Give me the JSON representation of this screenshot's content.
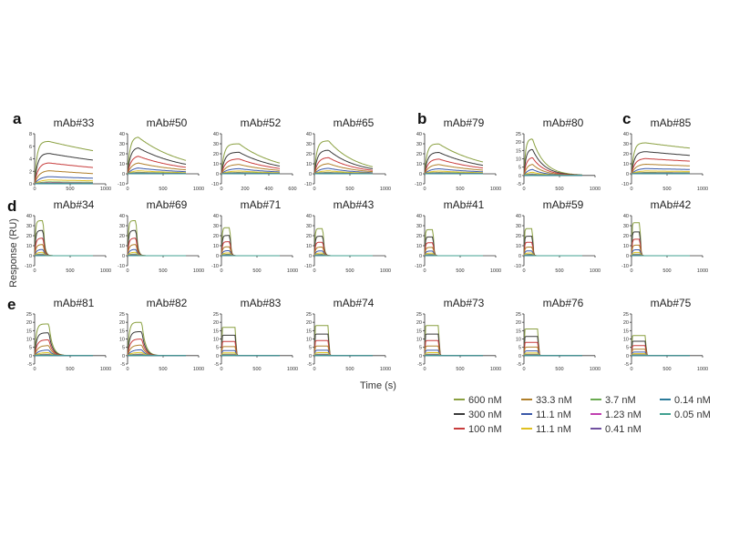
{
  "figure": {
    "ylabel": "Response (RU)",
    "xlabel": "Time (s)"
  },
  "legend": [
    {
      "label": "600 nM",
      "color": "#8aa040"
    },
    {
      "label": "300 nM",
      "color": "#3a3a3a"
    },
    {
      "label": "100 nM",
      "color": "#c83c3c"
    },
    {
      "label": "33.3 nM",
      "color": "#b07f2a"
    },
    {
      "label": "11.1 nM",
      "color": "#3a58a8"
    },
    {
      "label": "11.1 nM",
      "color": "#e0c020"
    },
    {
      "label": "3.7 nM",
      "color": "#6aaa50"
    },
    {
      "label": "1.23 nM",
      "color": "#c040b0"
    },
    {
      "label": "0.41 nM",
      "color": "#7050a0"
    },
    {
      "label": "0.14 nM",
      "color": "#2a7a9a"
    },
    {
      "label": "0.05 nM",
      "color": "#40a090"
    }
  ],
  "chart_data": [
    {
      "type": "line",
      "panel": "a",
      "title": "mAb#33",
      "yticks": [
        0,
        2,
        4,
        6,
        8
      ],
      "ylim": [
        0,
        8
      ],
      "xticks": [
        "0",
        "500",
        "1000"
      ],
      "xlim": [
        0,
        1000
      ],
      "assoc_end": 200,
      "peak": 6.8,
      "kd": 0.0004,
      "ka": 0.02
    },
    {
      "type": "line",
      "title": "mAb#50",
      "yticks": [
        -10,
        0,
        10,
        20,
        30,
        40
      ],
      "ylim": [
        -10,
        40
      ],
      "xticks": [
        "0",
        "500",
        "1000"
      ],
      "xlim": [
        0,
        1000
      ],
      "assoc_end": 150,
      "peak": 37,
      "kd": 0.0015,
      "ka": 0.02
    },
    {
      "type": "line",
      "title": "mAb#52",
      "yticks": [
        -10,
        0,
        10,
        20,
        30,
        40
      ],
      "ylim": [
        -10,
        40
      ],
      "xticks": [
        "0",
        "200",
        "400",
        "600"
      ],
      "xlim": [
        0,
        600
      ],
      "assoc_end": 150,
      "peak": 30,
      "kd": 0.003,
      "ka": 0.03
    },
    {
      "type": "line",
      "title": "mAb#65",
      "yticks": [
        -10,
        0,
        10,
        20,
        30,
        40
      ],
      "ylim": [
        -10,
        40
      ],
      "xticks": [
        "0",
        "500",
        "1000"
      ],
      "xlim": [
        0,
        1000
      ],
      "assoc_end": 200,
      "peak": 33,
      "kd": 0.0025,
      "ka": 0.02
    },
    {
      "type": "line",
      "panel": "b",
      "title": "mAb#79",
      "yticks": [
        -10,
        0,
        10,
        20,
        30,
        40
      ],
      "ylim": [
        -10,
        40
      ],
      "xticks": [
        "0",
        "500",
        "1000"
      ],
      "xlim": [
        0,
        1000
      ],
      "assoc_end": 200,
      "peak": 30,
      "kd": 0.0015,
      "ka": 0.02
    },
    {
      "type": "line",
      "title": "mAb#80",
      "yticks": [
        -5,
        0,
        5,
        10,
        15,
        20,
        25
      ],
      "ylim": [
        -5,
        25
      ],
      "xticks": [
        "0",
        "500",
        "1000"
      ],
      "xlim": [
        0,
        1000
      ],
      "assoc_end": 120,
      "peak": 22,
      "kd": 0.006,
      "ka": 0.03
    },
    {
      "type": "line",
      "panel": "c",
      "title": "mAb#85",
      "yticks": [
        -10,
        0,
        10,
        20,
        30,
        40
      ],
      "ylim": [
        -10,
        40
      ],
      "xticks": [
        "0",
        "500",
        "1000"
      ],
      "xlim": [
        0,
        1000
      ],
      "assoc_end": 200,
      "peak": 31,
      "kd": 0.0003,
      "ka": 0.02
    },
    {
      "type": "line",
      "panel": "d",
      "title": "mAb#34",
      "yticks": [
        -10,
        0,
        10,
        20,
        30,
        40
      ],
      "ylim": [
        -10,
        40
      ],
      "xticks": [
        "0",
        "500",
        "1000"
      ],
      "xlim": [
        0,
        1000
      ],
      "assoc_end": 120,
      "peak": 35,
      "kd": 0.05,
      "ka": 0.06
    },
    {
      "type": "line",
      "title": "mAb#69",
      "yticks": [
        -10,
        0,
        10,
        20,
        30,
        40
      ],
      "ylim": [
        -10,
        40
      ],
      "xticks": [
        "0",
        "500",
        "1000"
      ],
      "xlim": [
        0,
        1000
      ],
      "assoc_end": 120,
      "peak": 35,
      "kd": 0.05,
      "ka": 0.06
    },
    {
      "type": "line",
      "title": "mAb#71",
      "yticks": [
        -10,
        0,
        10,
        20,
        30,
        40
      ],
      "ylim": [
        -10,
        40
      ],
      "xticks": [
        "0",
        "500",
        "1000"
      ],
      "xlim": [
        0,
        1000
      ],
      "assoc_end": 120,
      "peak": 28,
      "kd": 0.08,
      "ka": 0.08
    },
    {
      "type": "line",
      "title": "mAb#43",
      "yticks": [
        -10,
        0,
        10,
        20,
        30,
        40
      ],
      "ylim": [
        -10,
        40
      ],
      "xticks": [
        "0",
        "500",
        "1000"
      ],
      "xlim": [
        0,
        1000
      ],
      "assoc_end": 120,
      "peak": 27,
      "kd": 0.06,
      "ka": 0.08
    },
    {
      "type": "line",
      "title": "mAb#41",
      "yticks": [
        -10,
        0,
        10,
        20,
        30,
        40
      ],
      "ylim": [
        -10,
        40
      ],
      "xticks": [
        "0",
        "500",
        "1000"
      ],
      "xlim": [
        0,
        1000
      ],
      "assoc_end": 120,
      "peak": 26,
      "kd": 0.1,
      "ka": 0.1
    },
    {
      "type": "line",
      "title": "mAb#59",
      "yticks": [
        -10,
        0,
        10,
        20,
        30,
        40
      ],
      "ylim": [
        -10,
        40
      ],
      "xticks": [
        "0",
        "500",
        "1000"
      ],
      "xlim": [
        0,
        1000
      ],
      "assoc_end": 120,
      "peak": 27,
      "kd": 0.12,
      "ka": 0.12
    },
    {
      "type": "line",
      "title": "mAb#42",
      "yticks": [
        -10,
        0,
        10,
        20,
        30,
        40
      ],
      "ylim": [
        -10,
        40
      ],
      "xticks": [
        "0",
        "500",
        "1000"
      ],
      "xlim": [
        0,
        1000
      ],
      "assoc_end": 120,
      "peak": 33,
      "kd": 0.12,
      "ka": 0.12
    },
    {
      "type": "line",
      "panel": "e",
      "title": "mAb#81",
      "yticks": [
        -5,
        0,
        5,
        10,
        15,
        20,
        25
      ],
      "ylim": [
        -5,
        25
      ],
      "xticks": [
        "0",
        "500",
        "1000"
      ],
      "xlim": [
        0,
        1000
      ],
      "assoc_end": 200,
      "peak": 19,
      "kd": 0.02,
      "ka": 0.03
    },
    {
      "type": "line",
      "title": "mAb#82",
      "yticks": [
        -5,
        0,
        5,
        10,
        15,
        20,
        25
      ],
      "ylim": [
        -5,
        25
      ],
      "xticks": [
        "0",
        "500",
        "1000"
      ],
      "xlim": [
        0,
        1000
      ],
      "assoc_end": 200,
      "peak": 20,
      "kd": 0.02,
      "ka": 0.03
    },
    {
      "type": "line",
      "title": "mAb#83",
      "yticks": [
        -5,
        0,
        5,
        10,
        15,
        20,
        25
      ],
      "ylim": [
        -5,
        25
      ],
      "xticks": [
        "0",
        "500",
        "1000"
      ],
      "xlim": [
        0,
        1000
      ],
      "assoc_end": 200,
      "peak": 17,
      "kd": 0.15,
      "ka": 0.2
    },
    {
      "type": "line",
      "title": "mAb#74",
      "yticks": [
        -5,
        0,
        5,
        10,
        15,
        20,
        25
      ],
      "ylim": [
        -5,
        25
      ],
      "xticks": [
        "0",
        "500",
        "1000"
      ],
      "xlim": [
        0,
        1000
      ],
      "assoc_end": 200,
      "peak": 18,
      "kd": 0.15,
      "ka": 0.2
    },
    {
      "type": "line",
      "title": "mAb#73",
      "yticks": [
        -5,
        0,
        5,
        10,
        15,
        20,
        25
      ],
      "ylim": [
        -5,
        25
      ],
      "xticks": [
        "0",
        "500",
        "1000"
      ],
      "xlim": [
        0,
        1000
      ],
      "assoc_end": 200,
      "peak": 18,
      "kd": 0.15,
      "ka": 0.2
    },
    {
      "type": "line",
      "title": "mAb#76",
      "yticks": [
        -5,
        0,
        5,
        10,
        15,
        20,
        25
      ],
      "ylim": [
        -5,
        25
      ],
      "xticks": [
        "0",
        "500",
        "1000"
      ],
      "xlim": [
        0,
        1000
      ],
      "assoc_end": 200,
      "peak": 16,
      "kd": 0.15,
      "ka": 0.2
    },
    {
      "type": "line",
      "title": "mAb#75",
      "yticks": [
        -5,
        0,
        5,
        10,
        15,
        20,
        25
      ],
      "ylim": [
        -5,
        25
      ],
      "xticks": [
        "0",
        "500",
        "1000"
      ],
      "xlim": [
        0,
        1000
      ],
      "assoc_end": 200,
      "peak": 12,
      "kd": 0.15,
      "ka": 0.2
    }
  ]
}
